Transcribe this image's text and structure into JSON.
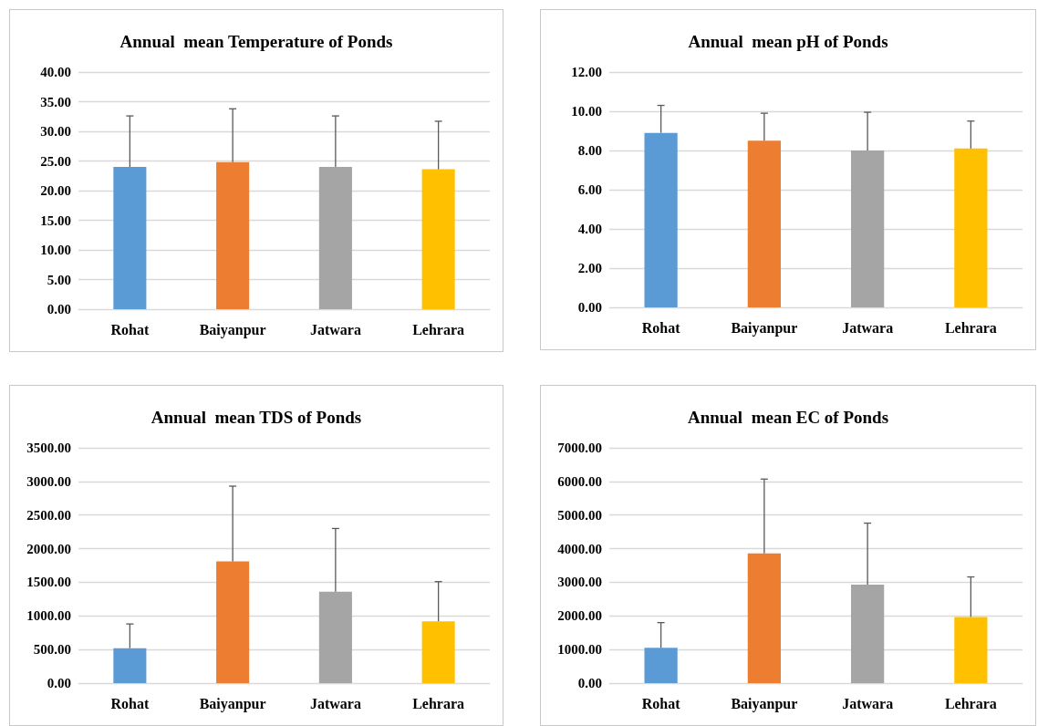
{
  "chart_data": [
    {
      "type": "bar",
      "title": "Annual  mean Temperature of Ponds",
      "categories": [
        "Rohat",
        "Baiyanpur",
        "Jatwara",
        "Lehrara"
      ],
      "values": [
        24.0,
        24.8,
        24.0,
        23.6
      ],
      "colors": [
        "#5b9bd5",
        "#ed7d31",
        "#a5a5a5",
        "#ffc000"
      ],
      "errors": [
        [
          24.0,
          32.6
        ],
        [
          24.8,
          33.8
        ],
        [
          24.0,
          32.6
        ],
        [
          23.6,
          31.7
        ]
      ],
      "ylim": [
        0,
        40
      ],
      "yticks": [
        {
          "value": 0,
          "label": "0.00"
        },
        {
          "value": 5,
          "label": "5.00"
        },
        {
          "value": 10,
          "label": "10.00"
        },
        {
          "value": 15,
          "label": "15.00"
        },
        {
          "value": 20,
          "label": "20.00"
        },
        {
          "value": 25,
          "label": "25.00"
        },
        {
          "value": 30,
          "label": "30.00"
        },
        {
          "value": 35,
          "label": "35.00"
        },
        {
          "value": 40,
          "label": "40.00"
        }
      ],
      "grid": "y"
    },
    {
      "type": "bar",
      "title": "Annual  mean pH of Ponds",
      "categories": [
        "Rohat",
        "Baiyanpur",
        "Jatwara",
        "Lehrara"
      ],
      "values": [
        8.9,
        8.5,
        8.0,
        8.1
      ],
      "colors": [
        "#5b9bd5",
        "#ed7d31",
        "#a5a5a5",
        "#ffc000"
      ],
      "errors": [
        [
          8.9,
          10.3
        ],
        [
          8.5,
          9.9
        ],
        [
          8.0,
          9.95
        ],
        [
          8.1,
          9.5
        ]
      ],
      "ylim": [
        0,
        12
      ],
      "yticks": [
        {
          "value": 0,
          "label": "0.00"
        },
        {
          "value": 2,
          "label": "2.00"
        },
        {
          "value": 4,
          "label": "4.00"
        },
        {
          "value": 6,
          "label": "6.00"
        },
        {
          "value": 8,
          "label": "8.00"
        },
        {
          "value": 10,
          "label": "10.00"
        },
        {
          "value": 12,
          "label": "12.00"
        }
      ],
      "grid": "y"
    },
    {
      "type": "bar",
      "title": "Annual  mean TDS of Ponds",
      "categories": [
        "Rohat",
        "Baiyanpur",
        "Jatwara",
        "Lehrara"
      ],
      "values": [
        520,
        1810,
        1360,
        920
      ],
      "colors": [
        "#5b9bd5",
        "#ed7d31",
        "#a5a5a5",
        "#ffc000"
      ],
      "errors": [
        [
          520,
          880
        ],
        [
          1810,
          2930
        ],
        [
          1360,
          2300
        ],
        [
          920,
          1510
        ]
      ],
      "ylim": [
        0,
        3500
      ],
      "yticks": [
        {
          "value": 0,
          "label": "0.00"
        },
        {
          "value": 500,
          "label": "500.00"
        },
        {
          "value": 1000,
          "label": "1000.00"
        },
        {
          "value": 1500,
          "label": "1500.00"
        },
        {
          "value": 2000,
          "label": "2000.00"
        },
        {
          "value": 2500,
          "label": "2500.00"
        },
        {
          "value": 3000,
          "label": "3000.00"
        },
        {
          "value": 3500,
          "label": "3500.00"
        }
      ],
      "grid": "y"
    },
    {
      "type": "bar",
      "title": "Annual  mean EC of Ponds",
      "categories": [
        "Rohat",
        "Baiyanpur",
        "Jatwara",
        "Lehrara"
      ],
      "values": [
        1050,
        3860,
        2930,
        1970
      ],
      "colors": [
        "#5b9bd5",
        "#ed7d31",
        "#a5a5a5",
        "#ffc000"
      ],
      "errors": [
        [
          1050,
          1800
        ],
        [
          3860,
          6070
        ],
        [
          2930,
          4760
        ],
        [
          1970,
          3160
        ]
      ],
      "ylim": [
        0,
        7000
      ],
      "yticks": [
        {
          "value": 0,
          "label": "0.00"
        },
        {
          "value": 1000,
          "label": "1000.00"
        },
        {
          "value": 2000,
          "label": "2000.00"
        },
        {
          "value": 3000,
          "label": "3000.00"
        },
        {
          "value": 4000,
          "label": "4000.00"
        },
        {
          "value": 5000,
          "label": "5000.00"
        },
        {
          "value": 6000,
          "label": "6000.00"
        },
        {
          "value": 7000,
          "label": "7000.00"
        }
      ],
      "grid": "y"
    }
  ]
}
